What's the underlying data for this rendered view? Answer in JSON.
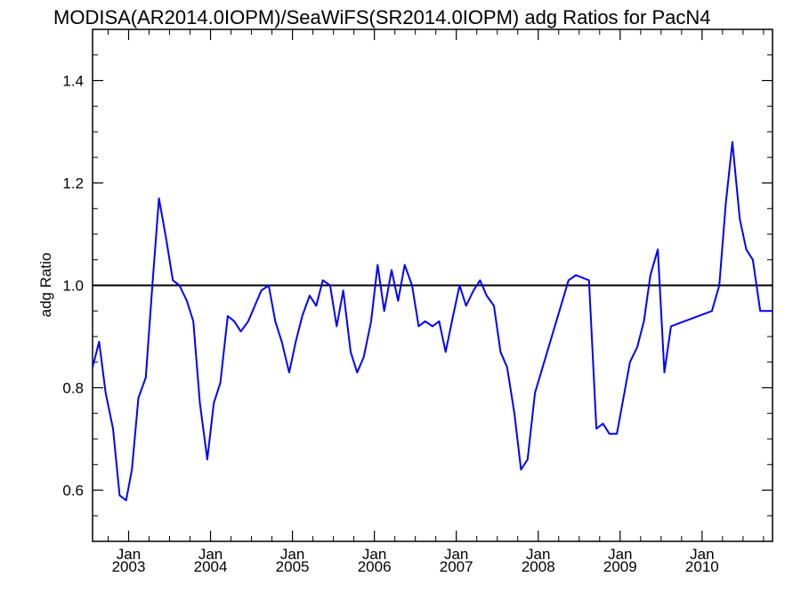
{
  "chart_data": {
    "type": "line",
    "title": "MODISA(AR2014.0IOPM)/SeaWiFS(SR2014.0IOPM)  adg Ratios for PacN4",
    "xlabel": "",
    "ylabel": "adg Ratio",
    "xlim": [
      2002.56,
      2010.86
    ],
    "ylim": [
      0.5,
      1.5
    ],
    "yticks": [
      0.6,
      0.8,
      1.0,
      1.2,
      1.4
    ],
    "yticklabels": [
      "0.6",
      "0.8",
      "1.0",
      "1.2",
      "1.4"
    ],
    "xticks": [
      {
        "x": 2003.0,
        "month": "Jan",
        "year": "2003"
      },
      {
        "x": 2004.0,
        "month": "Jan",
        "year": "2004"
      },
      {
        "x": 2005.0,
        "month": "Jan",
        "year": "2005"
      },
      {
        "x": 2006.0,
        "month": "Jan",
        "year": "2006"
      },
      {
        "x": 2007.0,
        "month": "Jan",
        "year": "2007"
      },
      {
        "x": 2008.0,
        "month": "Jan",
        "year": "2008"
      },
      {
        "x": 2009.0,
        "month": "Jan",
        "year": "2009"
      },
      {
        "x": 2010.0,
        "month": "Jan",
        "year": "2010"
      }
    ],
    "grid": false,
    "reference_line": {
      "y": 1.0,
      "color": "#000000"
    },
    "series": [
      {
        "color": "#0000ff",
        "x": [
          2002.56,
          2002.64,
          2002.72,
          2002.81,
          2002.89,
          2002.97,
          2003.04,
          2003.12,
          2003.21,
          2003.29,
          2003.37,
          2003.46,
          2003.54,
          2003.62,
          2003.71,
          2003.79,
          2003.87,
          2003.96,
          2004.04,
          2004.12,
          2004.21,
          2004.29,
          2004.37,
          2004.46,
          2004.54,
          2004.62,
          2004.71,
          2004.79,
          2004.87,
          2004.96,
          2005.04,
          2005.12,
          2005.21,
          2005.29,
          2005.37,
          2005.46,
          2005.54,
          2005.62,
          2005.71,
          2005.79,
          2005.87,
          2005.96,
          2006.04,
          2006.12,
          2006.21,
          2006.29,
          2006.37,
          2006.46,
          2006.54,
          2006.62,
          2006.71,
          2006.79,
          2006.87,
          2006.96,
          2007.04,
          2007.12,
          2007.21,
          2007.29,
          2007.37,
          2007.46,
          2007.54,
          2007.62,
          2007.71,
          2007.79,
          2007.87,
          2007.96,
          2008.37,
          2008.46,
          2008.62,
          2008.71,
          2008.79,
          2008.87,
          2008.96,
          2009.04,
          2009.12,
          2009.21,
          2009.29,
          2009.37,
          2009.46,
          2009.54,
          2009.62,
          2010.12,
          2010.21,
          2010.29,
          2010.37,
          2010.46,
          2010.54,
          2010.62,
          2010.71,
          2010.79,
          2010.86
        ],
        "values": [
          0.84,
          0.89,
          0.79,
          0.72,
          0.59,
          0.58,
          0.64,
          0.78,
          0.82,
          1.0,
          1.17,
          1.09,
          1.01,
          1.0,
          0.97,
          0.93,
          0.77,
          0.66,
          0.77,
          0.81,
          0.94,
          0.93,
          0.91,
          0.93,
          0.96,
          0.99,
          1.0,
          0.93,
          0.89,
          0.83,
          0.89,
          0.94,
          0.98,
          0.96,
          1.01,
          1.0,
          0.92,
          0.99,
          0.87,
          0.83,
          0.86,
          0.93,
          1.04,
          0.95,
          1.03,
          0.97,
          1.04,
          1.0,
          0.92,
          0.93,
          0.92,
          0.93,
          0.87,
          0.94,
          1.0,
          0.96,
          0.99,
          1.01,
          0.98,
          0.96,
          0.87,
          0.84,
          0.75,
          0.64,
          0.66,
          0.79,
          1.01,
          1.02,
          1.01,
          0.72,
          0.73,
          0.71,
          0.71,
          0.78,
          0.85,
          0.88,
          0.93,
          1.02,
          1.07,
          0.83,
          0.92,
          0.95,
          1.0,
          1.16,
          1.28,
          1.13,
          1.07,
          1.05,
          0.95,
          0.95,
          0.95
        ]
      }
    ]
  }
}
